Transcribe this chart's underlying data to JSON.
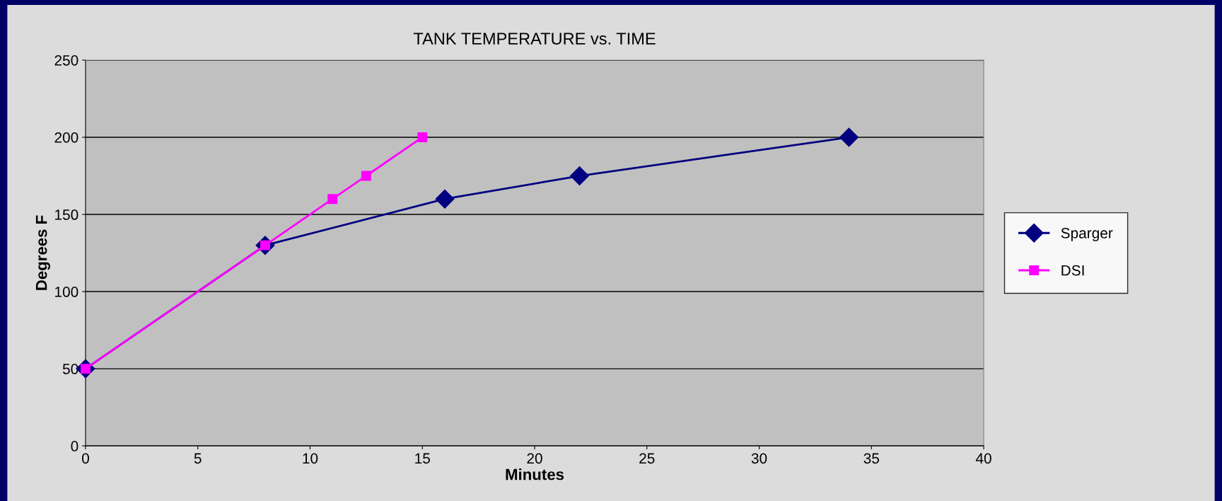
{
  "chart_data": {
    "type": "line",
    "title": "TANK TEMPERATURE vs. TIME",
    "xlabel": "Minutes",
    "ylabel": "Degrees F",
    "xlim": [
      0,
      40
    ],
    "xticks": [
      0,
      5,
      10,
      15,
      20,
      25,
      30,
      35,
      40
    ],
    "ylim": [
      0,
      250
    ],
    "yticks": [
      0,
      50,
      100,
      150,
      200,
      250
    ],
    "grid": "y",
    "legend": "right",
    "line_style": "solid",
    "series": [
      {
        "name": "Sparger",
        "color": "#000080",
        "marker": "diamond",
        "x": [
          0,
          8,
          16,
          22,
          34
        ],
        "values": [
          50,
          130,
          160,
          175,
          200
        ]
      },
      {
        "name": "DSI",
        "color": "#ff00ff",
        "marker": "square",
        "x": [
          0,
          8,
          11,
          12.5,
          15
        ],
        "values": [
          50,
          130,
          160,
          175,
          200
        ]
      }
    ]
  }
}
